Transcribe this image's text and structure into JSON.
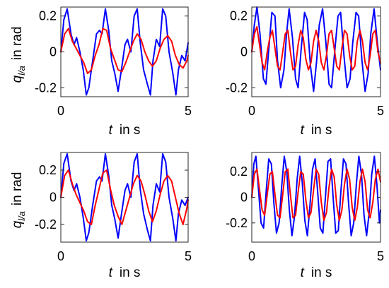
{
  "chart_data": [
    {
      "type": "line",
      "panel": "top-left",
      "xlabel_var": "t",
      "xlabel_unit": "in s",
      "ylabel_var": "q",
      "ylabel_sub": "l/a",
      "ylabel_unit": "in rad",
      "xlim": [
        0,
        5
      ],
      "ylim": [
        -0.25,
        0.25
      ],
      "xticks": [
        "0",
        "5"
      ],
      "xtick_values": [
        0,
        5
      ],
      "yticks": [
        "0.2",
        "0",
        "-0.2"
      ],
      "ytick_values": [
        0.2,
        0,
        -0.2
      ],
      "grid": false,
      "series": [
        {
          "color": "#0000ff",
          "x": [
            0.0,
            0.12,
            0.25,
            0.4,
            0.52,
            0.62,
            0.75,
            0.88,
            1.0,
            1.1,
            1.25,
            1.4,
            1.52,
            1.62,
            1.75,
            1.88,
            2.0,
            2.12,
            2.25,
            2.4,
            2.52,
            2.62,
            2.75,
            2.88,
            3.0,
            3.12,
            3.25,
            3.4,
            3.52,
            3.62,
            3.75,
            3.88,
            4.0,
            4.12,
            4.25,
            4.4,
            4.52,
            4.62,
            4.75,
            4.88,
            5.0
          ],
          "y": [
            0.0,
            0.18,
            0.24,
            0.1,
            0.04,
            0.08,
            0.0,
            -0.1,
            -0.24,
            -0.2,
            -0.05,
            0.1,
            0.12,
            0.1,
            0.24,
            0.12,
            -0.05,
            -0.12,
            -0.22,
            -0.08,
            0.04,
            0.07,
            0.0,
            0.2,
            0.24,
            0.05,
            -0.1,
            -0.18,
            -0.24,
            -0.05,
            0.07,
            0.03,
            0.24,
            0.2,
            0.0,
            -0.12,
            -0.24,
            -0.1,
            -0.02,
            -0.05,
            0.05
          ]
        },
        {
          "color": "#ff0000",
          "x": [
            0.0,
            0.15,
            0.3,
            0.45,
            0.6,
            0.75,
            0.9,
            1.05,
            1.2,
            1.35,
            1.5,
            1.65,
            1.8,
            1.95,
            2.1,
            2.25,
            2.4,
            2.55,
            2.7,
            2.85,
            3.0,
            3.15,
            3.3,
            3.45,
            3.6,
            3.75,
            3.9,
            4.05,
            4.2,
            4.35,
            4.5,
            4.65,
            4.8,
            4.95,
            5.0
          ],
          "y": [
            0.0,
            0.1,
            0.13,
            0.06,
            0.02,
            -0.02,
            -0.06,
            -0.12,
            -0.1,
            -0.02,
            0.04,
            0.13,
            0.12,
            0.02,
            -0.04,
            -0.1,
            -0.11,
            -0.06,
            0.0,
            0.06,
            0.1,
            0.07,
            0.0,
            -0.05,
            -0.08,
            -0.05,
            0.02,
            0.07,
            0.09,
            0.06,
            -0.02,
            -0.07,
            -0.09,
            -0.05,
            -0.02
          ]
        }
      ]
    },
    {
      "type": "line",
      "panel": "top-right",
      "xlabel_var": "t",
      "xlabel_unit": "in s",
      "ylabel_var": "",
      "ylabel_sub": "",
      "ylabel_unit": "",
      "xlim": [
        0,
        5
      ],
      "ylim": [
        -0.25,
        0.25
      ],
      "xticks": [
        "0",
        "5"
      ],
      "xtick_values": [
        0,
        5
      ],
      "yticks": [
        "0.2",
        "0",
        "-0.2"
      ],
      "ytick_values": [
        0.2,
        0,
        -0.2
      ],
      "grid": false,
      "series": [
        {
          "color": "#0000ff",
          "x": [
            0.0,
            0.1,
            0.2,
            0.32,
            0.45,
            0.55,
            0.65,
            0.78,
            0.9,
            1.0,
            1.12,
            1.25,
            1.35,
            1.45,
            1.58,
            1.7,
            1.8,
            1.92,
            2.05,
            2.15,
            2.28,
            2.4,
            2.52,
            2.62,
            2.75,
            2.88,
            3.0,
            3.1,
            3.22,
            3.35,
            3.45,
            3.58,
            3.7,
            3.82,
            3.92,
            4.05,
            4.15,
            4.28,
            4.4,
            4.52,
            4.62,
            4.75,
            4.88,
            5.0
          ],
          "y": [
            0.0,
            0.15,
            0.25,
            0.1,
            -0.15,
            -0.18,
            0.0,
            0.22,
            0.2,
            -0.05,
            -0.2,
            -0.1,
            0.1,
            0.24,
            0.08,
            -0.15,
            -0.2,
            0.02,
            0.22,
            0.18,
            -0.08,
            -0.22,
            -0.05,
            0.15,
            0.24,
            0.05,
            -0.18,
            -0.2,
            0.0,
            0.2,
            0.22,
            -0.02,
            -0.2,
            -0.15,
            0.05,
            0.22,
            0.2,
            -0.05,
            -0.22,
            -0.12,
            0.1,
            0.24,
            0.05,
            -0.1
          ]
        },
        {
          "color": "#ff0000",
          "x": [
            0.0,
            0.1,
            0.2,
            0.3,
            0.4,
            0.5,
            0.6,
            0.7,
            0.8,
            0.9,
            1.0,
            1.1,
            1.2,
            1.3,
            1.4,
            1.5,
            1.6,
            1.7,
            1.8,
            1.9,
            2.0,
            2.1,
            2.2,
            2.3,
            2.4,
            2.5,
            2.6,
            2.7,
            2.8,
            2.9,
            3.0,
            3.1,
            3.2,
            3.3,
            3.4,
            3.5,
            3.6,
            3.7,
            3.8,
            3.9,
            4.0,
            4.1,
            4.2,
            4.3,
            4.4,
            4.5,
            4.6,
            4.7,
            4.8,
            4.9,
            5.0
          ],
          "y": [
            0.0,
            0.1,
            0.14,
            0.04,
            -0.06,
            -0.1,
            0.0,
            0.08,
            0.12,
            0.02,
            -0.08,
            -0.1,
            0.0,
            0.1,
            0.12,
            0.0,
            -0.1,
            -0.08,
            0.04,
            0.12,
            0.08,
            -0.04,
            -0.1,
            -0.06,
            0.06,
            0.12,
            0.06,
            -0.06,
            -0.1,
            -0.02,
            0.1,
            0.12,
            0.02,
            -0.08,
            -0.1,
            0.02,
            0.12,
            0.1,
            -0.02,
            -0.1,
            -0.08,
            0.06,
            0.12,
            0.06,
            -0.06,
            -0.1,
            -0.02,
            0.1,
            0.12,
            0.0,
            -0.06
          ]
        }
      ]
    },
    {
      "type": "line",
      "panel": "bottom-left",
      "xlabel_var": "t",
      "xlabel_unit": "in s",
      "ylabel_var": "q",
      "ylabel_sub": "l/a",
      "ylabel_unit": "in rad",
      "xlim": [
        0,
        5
      ],
      "ylim": [
        -0.33,
        0.33
      ],
      "xticks": [
        "0",
        "5"
      ],
      "xtick_values": [
        0,
        5
      ],
      "yticks": [
        "0.2",
        "0",
        "-0.2"
      ],
      "ytick_values": [
        0.2,
        0,
        -0.2
      ],
      "grid": false,
      "series": [
        {
          "color": "#0000ff",
          "x": [
            0.0,
            0.12,
            0.25,
            0.4,
            0.52,
            0.62,
            0.75,
            0.88,
            1.0,
            1.1,
            1.25,
            1.4,
            1.52,
            1.62,
            1.75,
            1.88,
            2.0,
            2.12,
            2.25,
            2.4,
            2.52,
            2.62,
            2.75,
            2.88,
            3.0,
            3.12,
            3.25,
            3.4,
            3.52,
            3.62,
            3.75,
            3.88,
            4.0,
            4.12,
            4.25,
            4.4,
            4.52,
            4.62,
            4.75,
            4.88,
            5.0
          ],
          "y": [
            0.0,
            0.25,
            0.32,
            0.12,
            0.05,
            0.1,
            0.0,
            -0.15,
            -0.32,
            -0.26,
            -0.06,
            0.12,
            0.15,
            0.12,
            0.32,
            0.16,
            -0.06,
            -0.16,
            -0.3,
            -0.1,
            0.05,
            0.1,
            0.0,
            0.26,
            0.32,
            0.06,
            -0.12,
            -0.24,
            -0.32,
            -0.06,
            0.1,
            0.04,
            0.32,
            0.26,
            0.0,
            -0.16,
            -0.32,
            -0.12,
            -0.02,
            -0.06,
            0.0
          ]
        },
        {
          "color": "#ff0000",
          "x": [
            0.0,
            0.15,
            0.3,
            0.45,
            0.6,
            0.75,
            0.9,
            1.05,
            1.2,
            1.35,
            1.5,
            1.65,
            1.8,
            1.95,
            2.1,
            2.25,
            2.4,
            2.55,
            2.7,
            2.85,
            3.0,
            3.15,
            3.3,
            3.45,
            3.6,
            3.75,
            3.9,
            4.05,
            4.2,
            4.35,
            4.5,
            4.65,
            4.8,
            4.95,
            5.0
          ],
          "y": [
            0.0,
            0.16,
            0.2,
            0.1,
            0.02,
            -0.04,
            -0.1,
            -0.18,
            -0.2,
            -0.06,
            0.06,
            0.18,
            0.2,
            0.06,
            -0.06,
            -0.14,
            -0.2,
            -0.1,
            0.0,
            0.1,
            0.16,
            0.12,
            0.02,
            -0.1,
            -0.18,
            -0.1,
            0.02,
            0.12,
            0.16,
            0.12,
            0.0,
            -0.12,
            -0.2,
            -0.08,
            -0.02
          ]
        }
      ]
    },
    {
      "type": "line",
      "panel": "bottom-right",
      "xlabel_var": "t",
      "xlabel_unit": "in s",
      "ylabel_var": "",
      "ylabel_sub": "",
      "ylabel_unit": "",
      "xlim": [
        0,
        5
      ],
      "ylim": [
        -0.35,
        0.35
      ],
      "xticks": [
        "0",
        "5"
      ],
      "xtick_values": [
        0,
        5
      ],
      "yticks": [
        "0.2",
        "0",
        "-0.2"
      ],
      "ytick_values": [
        0.2,
        0,
        -0.2
      ],
      "grid": false,
      "series": [
        {
          "color": "#0000ff",
          "x": [
            0.0,
            0.08,
            0.16,
            0.26,
            0.36,
            0.46,
            0.56,
            0.66,
            0.76,
            0.86,
            0.96,
            1.06,
            1.16,
            1.26,
            1.36,
            1.46,
            1.56,
            1.66,
            1.76,
            1.86,
            1.96,
            2.06,
            2.16,
            2.26,
            2.36,
            2.46,
            2.56,
            2.66,
            2.76,
            2.86,
            2.96,
            3.06,
            3.16,
            3.26,
            3.36,
            3.46,
            3.56,
            3.66,
            3.76,
            3.86,
            3.96,
            4.06,
            4.16,
            4.26,
            4.36,
            4.46,
            4.56,
            4.66,
            4.76,
            4.86,
            4.96,
            5.0
          ],
          "y": [
            0.0,
            0.26,
            0.32,
            0.06,
            -0.2,
            -0.24,
            0.05,
            0.3,
            0.26,
            -0.05,
            -0.28,
            -0.2,
            0.08,
            0.32,
            0.2,
            -0.1,
            -0.3,
            -0.15,
            0.14,
            0.32,
            0.12,
            -0.18,
            -0.3,
            -0.06,
            0.22,
            0.3,
            0.04,
            -0.24,
            -0.28,
            0.0,
            0.28,
            0.3,
            0.0,
            -0.28,
            -0.26,
            0.04,
            0.3,
            0.26,
            -0.05,
            -0.3,
            -0.2,
            0.1,
            0.32,
            0.18,
            -0.14,
            -0.3,
            -0.12,
            0.18,
            0.32,
            0.1,
            -0.2,
            -0.1
          ]
        },
        {
          "color": "#ff0000",
          "x": [
            0.0,
            0.1,
            0.2,
            0.3,
            0.4,
            0.5,
            0.6,
            0.7,
            0.8,
            0.9,
            1.0,
            1.1,
            1.2,
            1.3,
            1.4,
            1.5,
            1.6,
            1.7,
            1.8,
            1.9,
            2.0,
            2.1,
            2.2,
            2.3,
            2.4,
            2.5,
            2.6,
            2.7,
            2.8,
            2.9,
            3.0,
            3.1,
            3.2,
            3.3,
            3.4,
            3.5,
            3.6,
            3.7,
            3.8,
            3.9,
            4.0,
            4.1,
            4.2,
            4.3,
            4.4,
            4.5,
            4.6,
            4.7,
            4.8,
            4.9,
            5.0
          ],
          "y": [
            0.0,
            0.18,
            0.22,
            0.06,
            -0.1,
            -0.14,
            0.02,
            0.18,
            0.2,
            0.02,
            -0.14,
            -0.16,
            0.02,
            0.2,
            0.22,
            0.02,
            -0.16,
            -0.14,
            0.04,
            0.2,
            0.18,
            -0.02,
            -0.16,
            -0.12,
            0.06,
            0.22,
            0.18,
            -0.04,
            -0.18,
            -0.12,
            0.08,
            0.22,
            0.16,
            -0.06,
            -0.18,
            -0.1,
            0.1,
            0.22,
            0.14,
            -0.08,
            -0.18,
            -0.08,
            0.12,
            0.22,
            0.12,
            -0.1,
            -0.16,
            -0.04,
            0.14,
            0.22,
            0.12
          ]
        }
      ]
    }
  ]
}
